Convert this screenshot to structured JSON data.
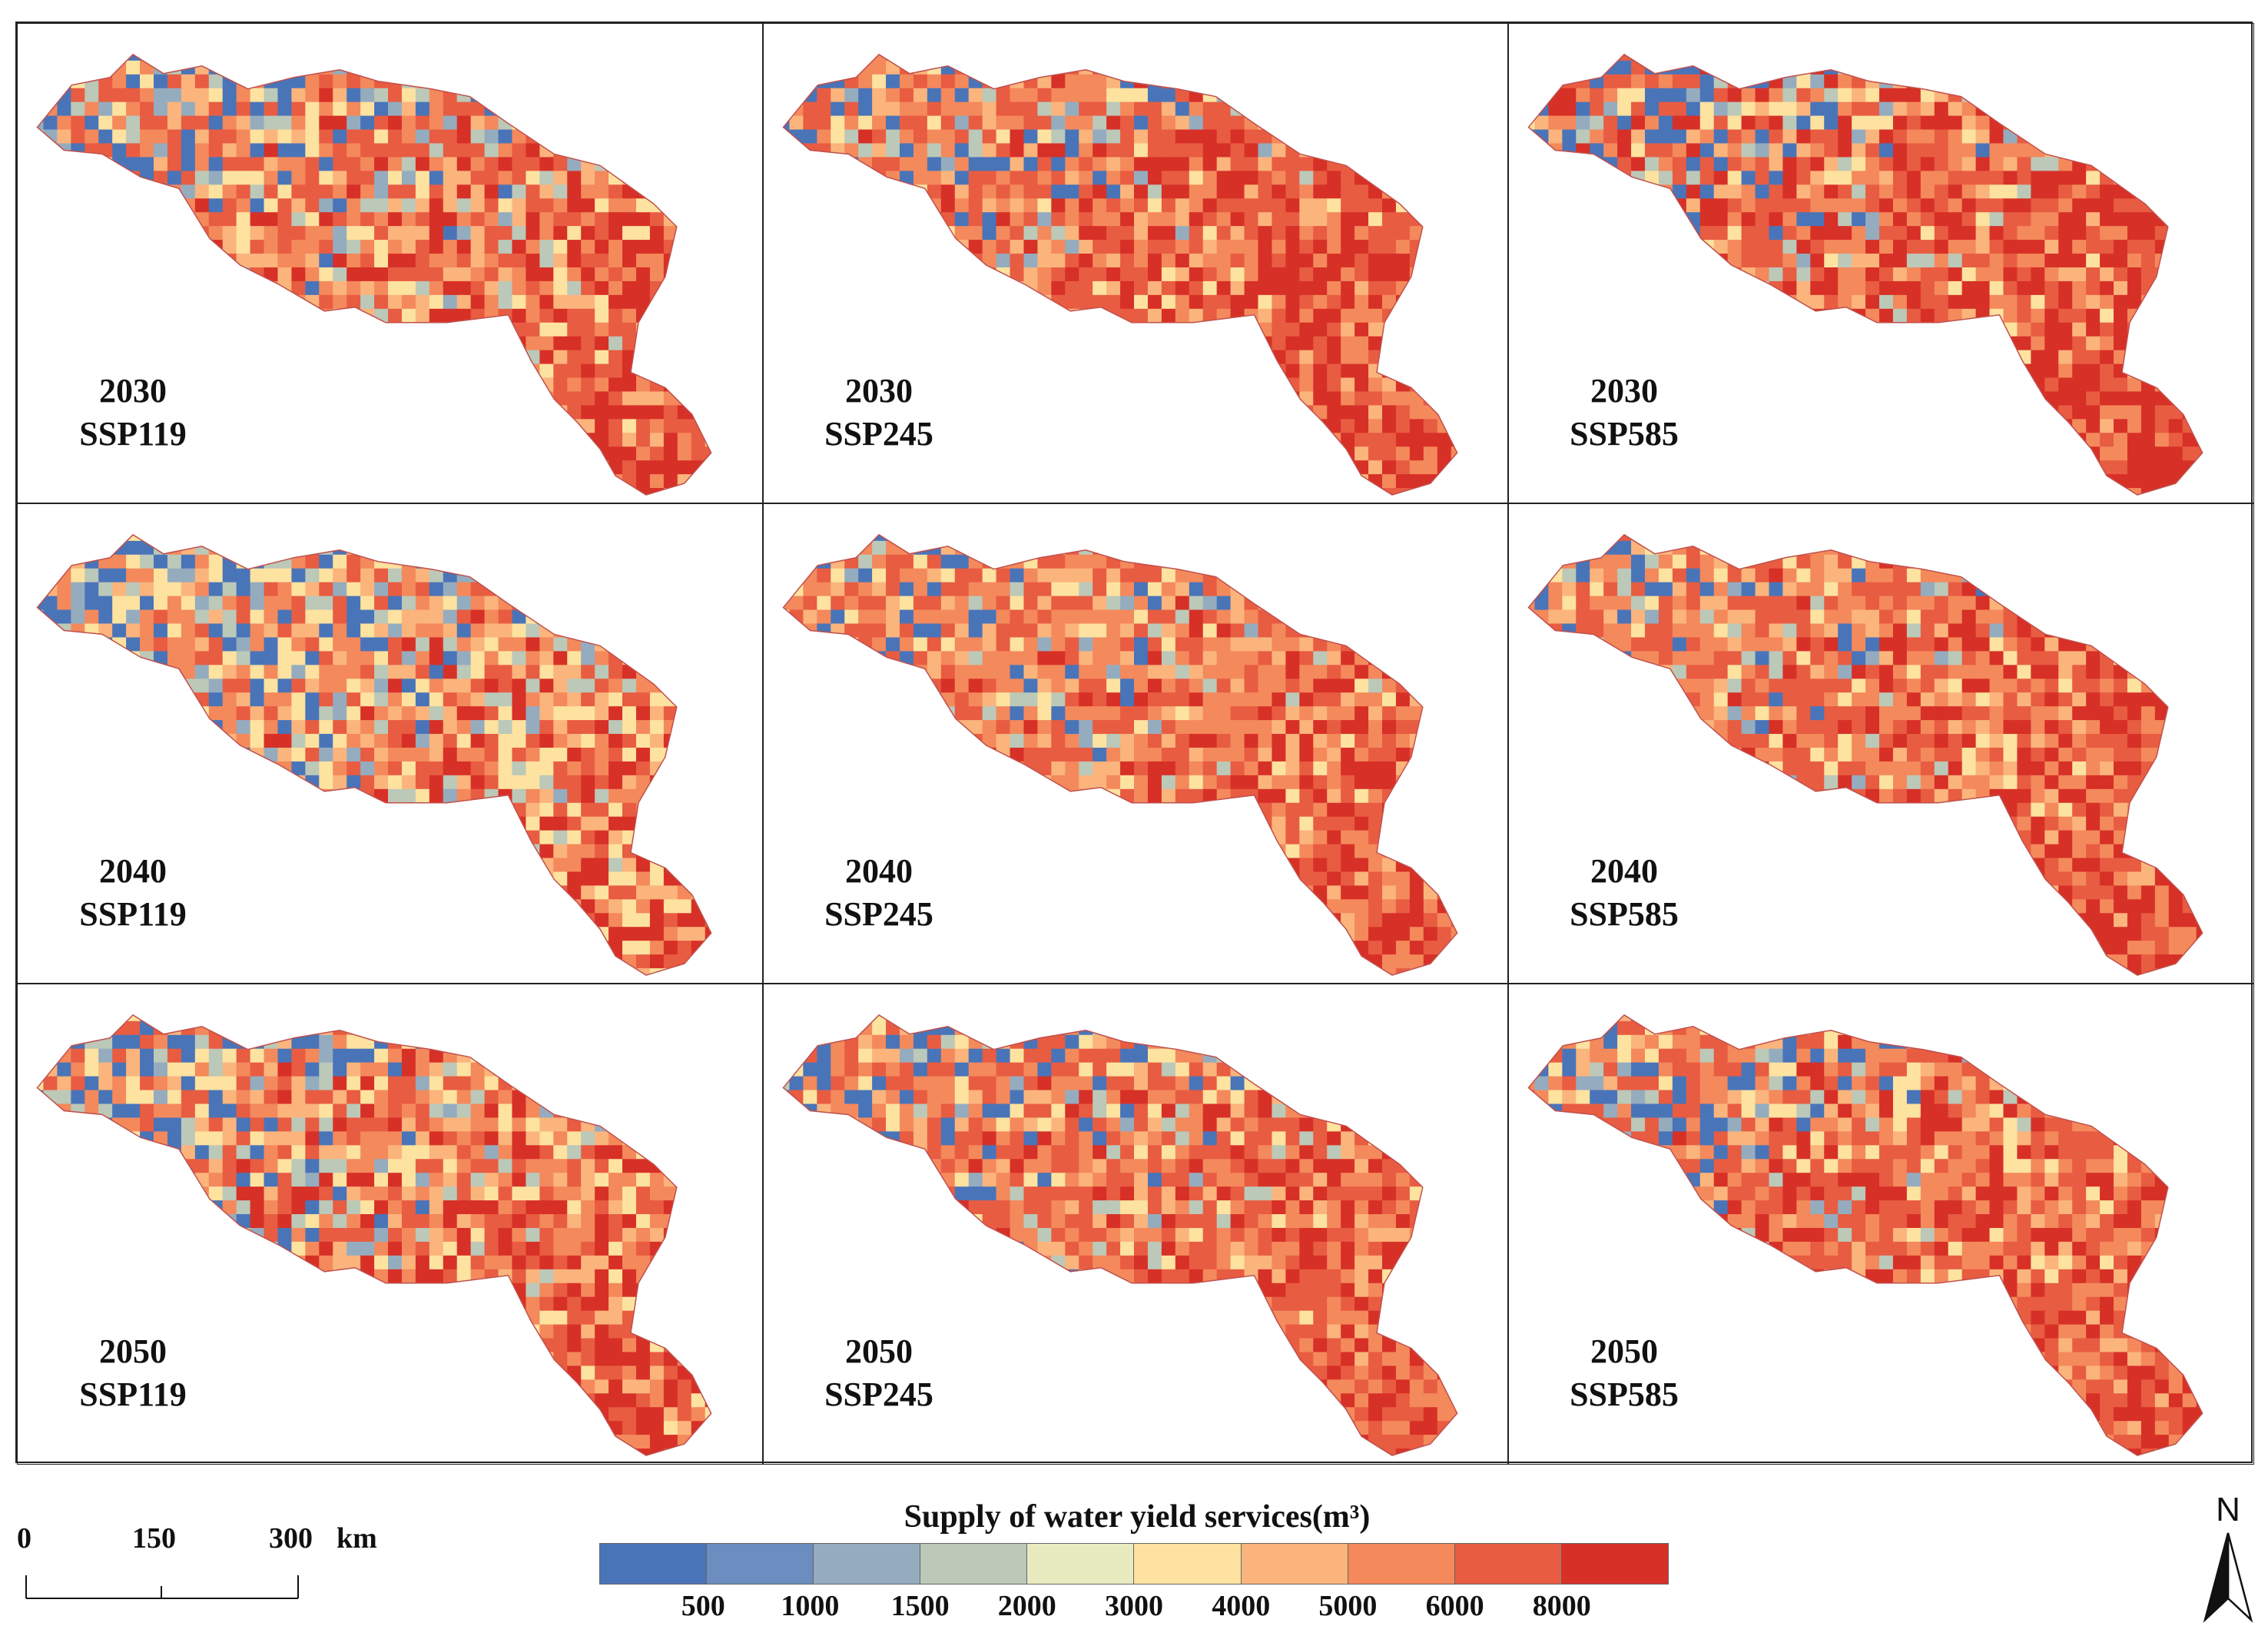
{
  "panels": [
    {
      "year": "2030",
      "scenario": "SSP119",
      "palette": [
        "#d73027",
        "#e34a33",
        "#f46d43",
        "#fdae61",
        "#fee090",
        "#abd9e9",
        "#74add1",
        "#4575b4"
      ],
      "mix": [
        0.15,
        0.25,
        0.2,
        0.12,
        0.1,
        0.08,
        0.06,
        0.04
      ]
    },
    {
      "year": "2030",
      "scenario": "SSP245",
      "mix": [
        0.22,
        0.28,
        0.22,
        0.12,
        0.08,
        0.04,
        0.03,
        0.01
      ]
    },
    {
      "year": "2030",
      "scenario": "SSP585",
      "mix": [
        0.3,
        0.25,
        0.18,
        0.1,
        0.08,
        0.05,
        0.03,
        0.01
      ]
    },
    {
      "year": "2040",
      "scenario": "SSP119",
      "mix": [
        0.1,
        0.18,
        0.18,
        0.14,
        0.16,
        0.1,
        0.08,
        0.06
      ]
    },
    {
      "year": "2040",
      "scenario": "SSP245",
      "mix": [
        0.14,
        0.28,
        0.24,
        0.12,
        0.1,
        0.06,
        0.04,
        0.02
      ]
    },
    {
      "year": "2040",
      "scenario": "SSP585",
      "mix": [
        0.16,
        0.3,
        0.24,
        0.12,
        0.1,
        0.05,
        0.02,
        0.01
      ]
    },
    {
      "year": "2050",
      "scenario": "SSP119",
      "mix": [
        0.18,
        0.22,
        0.18,
        0.12,
        0.14,
        0.08,
        0.05,
        0.03
      ]
    },
    {
      "year": "2050",
      "scenario": "SSP245",
      "mix": [
        0.16,
        0.32,
        0.24,
        0.1,
        0.08,
        0.05,
        0.03,
        0.02
      ]
    },
    {
      "year": "2050",
      "scenario": "SSP585",
      "mix": [
        0.18,
        0.3,
        0.24,
        0.1,
        0.09,
        0.05,
        0.03,
        0.01
      ]
    }
  ],
  "scale_bar": {
    "labels": [
      "0",
      "150",
      "300"
    ],
    "unit": "km"
  },
  "legend": {
    "title": "Supply of water yield services(m³)",
    "colors": [
      "#4a74b8",
      "#6b8dbf",
      "#95acbf",
      "#bcc8b8",
      "#e8ebc0",
      "#fde2a0",
      "#fbb47c",
      "#f4895c",
      "#e85c42",
      "#d73027"
    ],
    "ticks": [
      "500",
      "1000",
      "1500",
      "2000",
      "3000",
      "4000",
      "5000",
      "6000",
      "8000"
    ]
  },
  "north_arrow": {
    "label": "N"
  }
}
